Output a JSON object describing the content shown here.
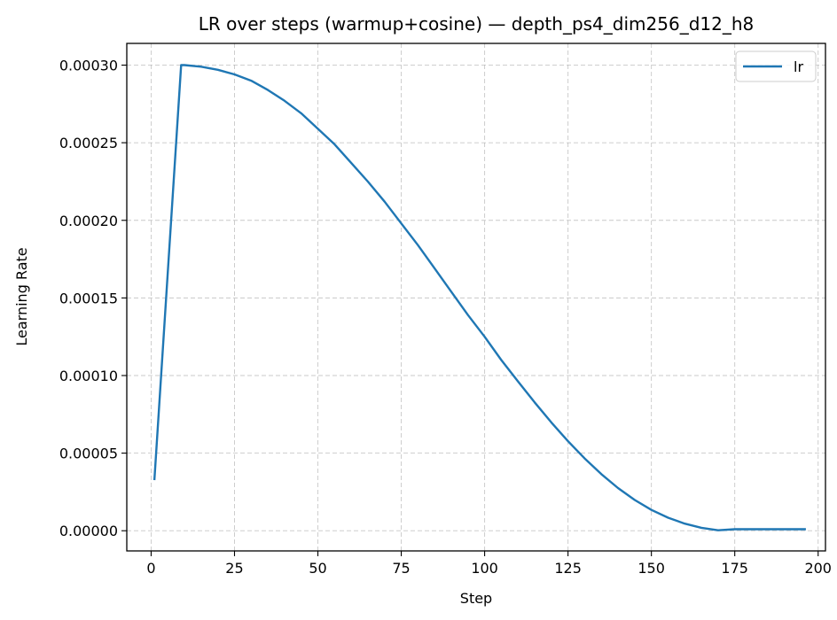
{
  "chart_data": {
    "type": "line",
    "title": "LR over steps (warmup+cosine) — depth_ps4_dim256_d12_h8",
    "xlabel": "Step",
    "ylabel": "Learning Rate",
    "xlim": [
      -7.3,
      202.2
    ],
    "ylim": [
      -1.3e-05,
      0.000314
    ],
    "xticks": [
      0,
      25,
      50,
      75,
      100,
      125,
      150,
      175,
      200
    ],
    "xtick_labels": [
      "0",
      "25",
      "50",
      "75",
      "100",
      "125",
      "150",
      "175",
      "200"
    ],
    "yticks": [
      0,
      5e-05,
      0.0001,
      0.00015,
      0.0002,
      0.00025,
      0.0003
    ],
    "ytick_labels": [
      "0.00000",
      "0.00005",
      "0.00010",
      "0.00015",
      "0.00020",
      "0.00025",
      "0.00030"
    ],
    "grid": true,
    "legend_position": "top-right",
    "series": [
      {
        "name": "lr",
        "color": "#1f77b4",
        "x": [
          1,
          9,
          10,
          15,
          20,
          25,
          30,
          35,
          40,
          45,
          50,
          55,
          60,
          65,
          70,
          75,
          80,
          85,
          90,
          95,
          100,
          105,
          110,
          115,
          120,
          125,
          130,
          135,
          140,
          145,
          150,
          155,
          160,
          165,
          170,
          175,
          180,
          185,
          190,
          196
        ],
        "y": [
          3.33e-05,
          0.0003,
          0.0003,
          0.000299,
          0.000297,
          0.000294,
          0.00029,
          0.000284,
          0.000277,
          0.000269,
          0.000259,
          0.000249,
          0.000237,
          0.000225,
          0.000212,
          0.000198,
          0.000184,
          0.000169,
          0.000154,
          0.000139,
          0.000125,
          0.00011,
          9.62e-05,
          8.27e-05,
          6.98e-05,
          5.77e-05,
          4.66e-05,
          3.65e-05,
          2.75e-05,
          1.98e-05,
          1.34e-05,
          8.4e-06,
          4.6e-06,
          1.9e-06,
          3e-07,
          1e-06,
          1e-06,
          1e-06,
          1e-06,
          1e-06
        ]
      }
    ]
  }
}
